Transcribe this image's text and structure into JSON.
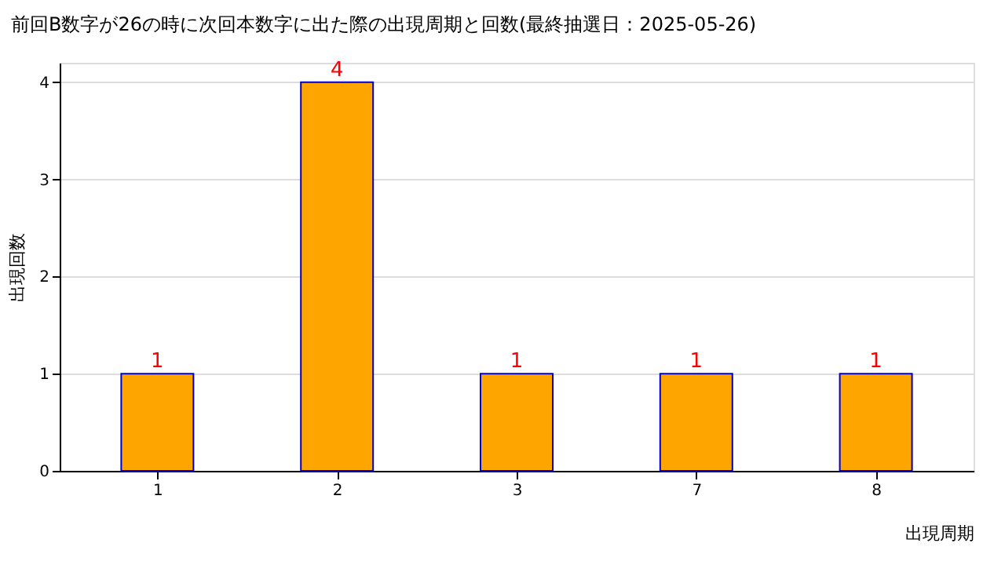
{
  "chart_data": {
    "type": "bar",
    "title": "前回B数字が26の時に次回本数字に出た際の出現周期と回数(最終抽選日：2025-05-26)",
    "xlabel": "出現周期",
    "ylabel": "出現回数",
    "categories": [
      "1",
      "2",
      "3",
      "7",
      "8"
    ],
    "series": [
      {
        "color": "#ffa500",
        "values": [
          1,
          4,
          1,
          1,
          1
        ]
      }
    ],
    "ylim": [
      0,
      4.2
    ],
    "yticks": [
      0,
      1,
      2,
      3,
      4
    ],
    "grid": "y",
    "data_labels": true
  }
}
